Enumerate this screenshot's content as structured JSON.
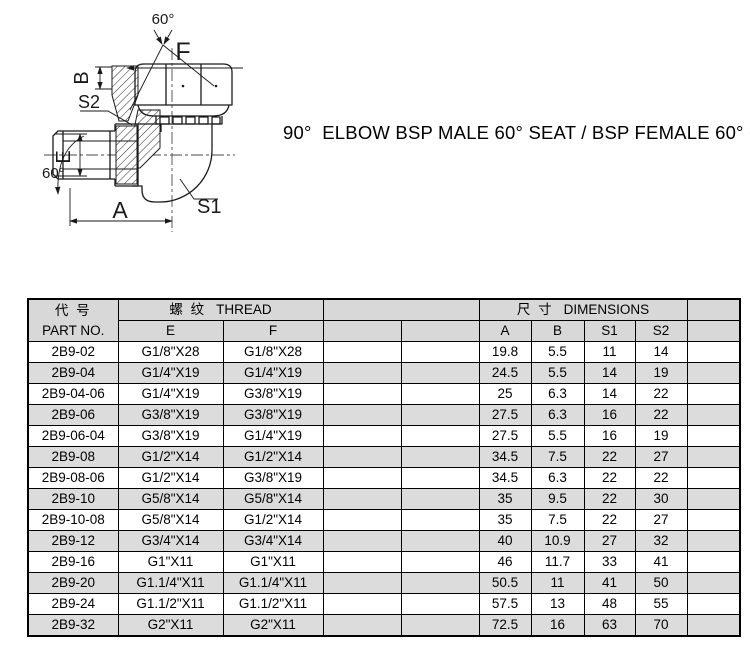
{
  "title": "90°  ELBOW BSP MALE 60° SEAT / BSP FEMALE 60° CONE",
  "drawing": {
    "angle_top": "60°",
    "label_f": "F",
    "label_b": "B",
    "label_s2": "S2",
    "label_e": "E",
    "angle_left": "60°",
    "label_a": "A",
    "label_s1": "S1"
  },
  "table": {
    "header": {
      "part_no_cn": "代 号",
      "part_no_en": "PART NO.",
      "thread_cn": "螺 纹",
      "thread_en": "THREAD",
      "dims_cn": "尺 寸",
      "dims_en": "DIMENSIONS",
      "col_e": "E",
      "col_f": "F",
      "col_a": "A",
      "col_b": "B",
      "col_s1": "S1",
      "col_s2": "S2"
    },
    "rows": [
      [
        "2B9-02",
        "G1/8\"X28",
        "G1/8\"X28",
        "",
        "",
        "19.8",
        "5.5",
        "11",
        "14",
        ""
      ],
      [
        "2B9-04",
        "G1/4\"X19",
        "G1/4\"X19",
        "",
        "",
        "24.5",
        "5.5",
        "14",
        "19",
        ""
      ],
      [
        "2B9-04-06",
        "G1/4\"X19",
        "G3/8\"X19",
        "",
        "",
        "25",
        "6.3",
        "14",
        "22",
        ""
      ],
      [
        "2B9-06",
        "G3/8\"X19",
        "G3/8\"X19",
        "",
        "",
        "27.5",
        "6.3",
        "16",
        "22",
        ""
      ],
      [
        "2B9-06-04",
        "G3/8\"X19",
        "G1/4\"X19",
        "",
        "",
        "27.5",
        "5.5",
        "16",
        "19",
        ""
      ],
      [
        "2B9-08",
        "G1/2\"X14",
        "G1/2\"X14",
        "",
        "",
        "34.5",
        "7.5",
        "22",
        "27",
        ""
      ],
      [
        "2B9-08-06",
        "G1/2\"X14",
        "G3/8\"X19",
        "",
        "",
        "34.5",
        "6.3",
        "22",
        "22",
        ""
      ],
      [
        "2B9-10",
        "G5/8\"X14",
        "G5/8\"X14",
        "",
        "",
        "35",
        "9.5",
        "22",
        "30",
        ""
      ],
      [
        "2B9-10-08",
        "G5/8\"X14",
        "G1/2\"X14",
        "",
        "",
        "35",
        "7.5",
        "22",
        "27",
        ""
      ],
      [
        "2B9-12",
        "G3/4\"X14",
        "G3/4\"X14",
        "",
        "",
        "40",
        "10.9",
        "27",
        "32",
        ""
      ],
      [
        "2B9-16",
        "G1\"X11",
        "G1\"X11",
        "",
        "",
        "46",
        "11.7",
        "33",
        "41",
        ""
      ],
      [
        "2B9-20",
        "G1.1/4\"X11",
        "G1.1/4\"X11",
        "",
        "",
        "50.5",
        "11",
        "41",
        "50",
        ""
      ],
      [
        "2B9-24",
        "G1.1/2\"X11",
        "G1.1/2\"X11",
        "",
        "",
        "57.5",
        "13",
        "48",
        "55",
        ""
      ],
      [
        "2B9-32",
        "G2\"X11",
        "G2\"X11",
        "",
        "",
        "72.5",
        "16",
        "63",
        "70",
        ""
      ]
    ]
  },
  "colors": {
    "page_bg": "#ffffff",
    "border": "#000000",
    "header_bg": "#d8d8d8",
    "row_alt": "#dcdcdc",
    "line": "#1a1a1a"
  }
}
